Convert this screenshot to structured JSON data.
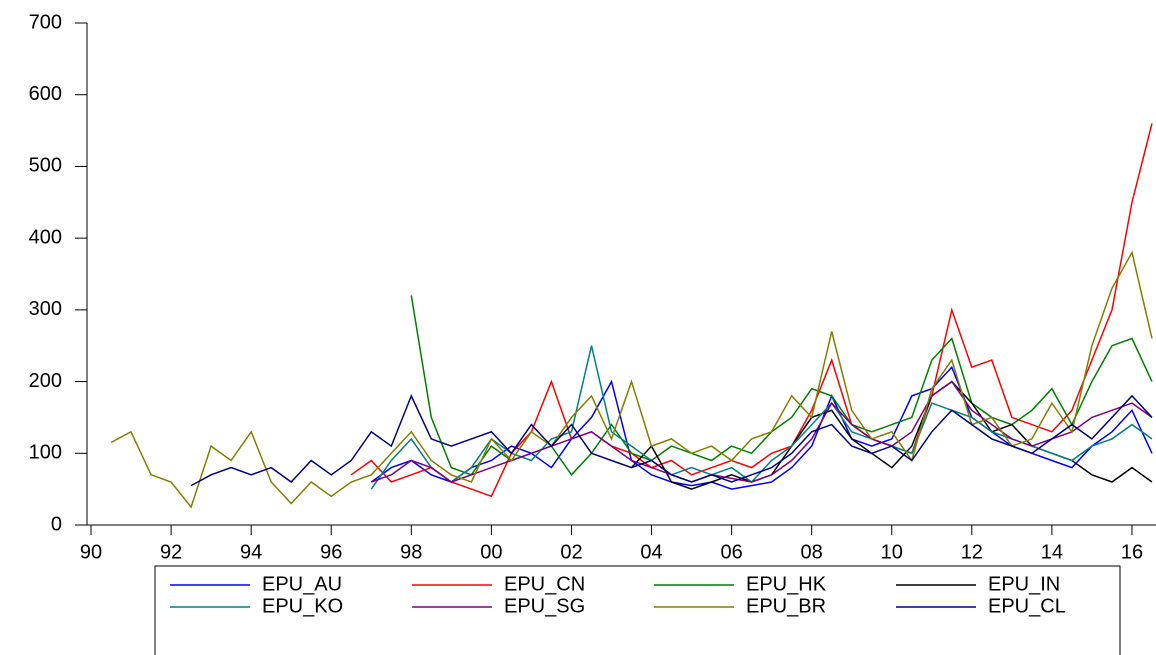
{
  "chart_data": {
    "type": "line",
    "grid": false,
    "legend": "bottom",
    "xlim": [
      1989.9,
      2016.6
    ],
    "ylim": [
      0,
      700
    ],
    "yticks": [
      0,
      100,
      200,
      300,
      400,
      500,
      600,
      700
    ],
    "xticks": [
      {
        "value": 1990,
        "label": "90"
      },
      {
        "value": 1992,
        "label": "92"
      },
      {
        "value": 1994,
        "label": "94"
      },
      {
        "value": 1996,
        "label": "96"
      },
      {
        "value": 1998,
        "label": "98"
      },
      {
        "value": 2000,
        "label": "00"
      },
      {
        "value": 2002,
        "label": "02"
      },
      {
        "value": 2004,
        "label": "04"
      },
      {
        "value": 2006,
        "label": "06"
      },
      {
        "value": 2008,
        "label": "08"
      },
      {
        "value": 2010,
        "label": "10"
      },
      {
        "value": 2012,
        "label": "12"
      },
      {
        "value": 2014,
        "label": "14"
      },
      {
        "value": 2016,
        "label": "16"
      }
    ],
    "x": [
      1990.5,
      1991,
      1991.5,
      1992,
      1992.5,
      1993,
      1993.5,
      1994,
      1994.5,
      1995,
      1995.5,
      1996,
      1996.5,
      1997,
      1997.5,
      1998,
      1998.5,
      1999,
      1999.5,
      2000,
      2000.5,
      2001,
      2001.5,
      2002,
      2002.5,
      2003,
      2003.5,
      2004,
      2004.5,
      2005,
      2005.5,
      2006,
      2006.5,
      2007,
      2007.5,
      2008,
      2008.5,
      2009,
      2009.5,
      2010,
      2010.5,
      2011,
      2011.5,
      2012,
      2012.5,
      2013,
      2013.5,
      2014,
      2014.5,
      2015,
      2015.5,
      2016,
      2016.5
    ],
    "series": [
      {
        "name": "EPU_AU",
        "color": "#0000ff",
        "values": [
          null,
          null,
          null,
          null,
          null,
          null,
          null,
          null,
          null,
          null,
          null,
          null,
          null,
          60,
          80,
          90,
          70,
          60,
          80,
          90,
          110,
          100,
          80,
          120,
          150,
          200,
          90,
          70,
          60,
          55,
          60,
          50,
          55,
          60,
          80,
          110,
          180,
          120,
          110,
          120,
          180,
          190,
          220,
          150,
          130,
          110,
          100,
          90,
          80,
          110,
          130,
          160,
          100
        ]
      },
      {
        "name": "EPU_CN",
        "color": "#ff0000",
        "values": [
          null,
          null,
          null,
          null,
          null,
          null,
          null,
          null,
          null,
          null,
          null,
          null,
          70,
          90,
          60,
          70,
          80,
          60,
          50,
          40,
          100,
          130,
          200,
          120,
          130,
          110,
          100,
          80,
          90,
          70,
          80,
          90,
          80,
          100,
          110,
          160,
          230,
          140,
          120,
          110,
          100,
          180,
          300,
          220,
          230,
          150,
          140,
          130,
          160,
          230,
          300,
          450,
          560
        ]
      },
      {
        "name": "EPU_HK",
        "color": "#008000",
        "values": [
          null,
          null,
          null,
          null,
          null,
          null,
          null,
          null,
          null,
          null,
          null,
          null,
          null,
          null,
          null,
          320,
          150,
          80,
          70,
          110,
          90,
          100,
          110,
          70,
          100,
          140,
          100,
          90,
          110,
          100,
          90,
          110,
          100,
          130,
          150,
          190,
          180,
          140,
          130,
          140,
          150,
          230,
          260,
          170,
          150,
          140,
          160,
          190,
          140,
          200,
          250,
          260,
          200
        ]
      },
      {
        "name": "EPU_IN",
        "color": "#000000",
        "values": [
          null,
          null,
          null,
          null,
          null,
          null,
          null,
          null,
          null,
          null,
          null,
          null,
          null,
          null,
          null,
          null,
          null,
          null,
          null,
          null,
          null,
          null,
          null,
          null,
          null,
          null,
          80,
          110,
          60,
          50,
          60,
          70,
          60,
          70,
          110,
          150,
          160,
          120,
          100,
          80,
          110,
          180,
          200,
          170,
          130,
          140,
          110,
          100,
          90,
          70,
          60,
          80,
          60
        ]
      },
      {
        "name": "EPU_KO",
        "color": "#008080",
        "values": [
          null,
          null,
          null,
          null,
          null,
          null,
          null,
          null,
          null,
          null,
          null,
          null,
          null,
          50,
          90,
          120,
          80,
          60,
          80,
          120,
          100,
          90,
          120,
          130,
          250,
          130,
          110,
          90,
          70,
          80,
          70,
          80,
          60,
          90,
          110,
          140,
          170,
          130,
          120,
          110,
          100,
          170,
          160,
          150,
          130,
          120,
          110,
          100,
          90,
          110,
          120,
          140,
          120
        ]
      },
      {
        "name": "EPU_SG",
        "color": "#800080",
        "values": [
          null,
          null,
          null,
          null,
          null,
          null,
          null,
          null,
          null,
          null,
          null,
          null,
          null,
          60,
          70,
          90,
          80,
          60,
          70,
          80,
          90,
          100,
          110,
          120,
          130,
          110,
          90,
          80,
          70,
          60,
          70,
          65,
          60,
          70,
          90,
          120,
          170,
          140,
          120,
          110,
          130,
          180,
          200,
          160,
          140,
          120,
          110,
          120,
          130,
          150,
          160,
          170,
          150
        ]
      },
      {
        "name": "EPU_BR",
        "color": "#808000",
        "values": [
          115,
          130,
          70,
          60,
          25,
          110,
          90,
          130,
          60,
          30,
          60,
          40,
          60,
          70,
          100,
          130,
          90,
          70,
          60,
          120,
          90,
          130,
          110,
          150,
          180,
          120,
          200,
          110,
          120,
          100,
          110,
          90,
          120,
          130,
          180,
          150,
          270,
          160,
          120,
          130,
          90,
          190,
          230,
          140,
          150,
          110,
          120,
          170,
          130,
          250,
          330,
          380,
          260
        ]
      },
      {
        "name": "EPU_CL",
        "color": "#000080",
        "values": [
          null,
          null,
          null,
          null,
          55,
          70,
          80,
          70,
          80,
          60,
          90,
          70,
          90,
          130,
          110,
          180,
          120,
          110,
          120,
          130,
          100,
          140,
          110,
          140,
          100,
          90,
          80,
          90,
          70,
          60,
          70,
          60,
          70,
          80,
          100,
          130,
          140,
          110,
          100,
          110,
          90,
          130,
          160,
          140,
          120,
          110,
          100,
          120,
          140,
          120,
          150,
          180,
          150
        ]
      }
    ]
  }
}
